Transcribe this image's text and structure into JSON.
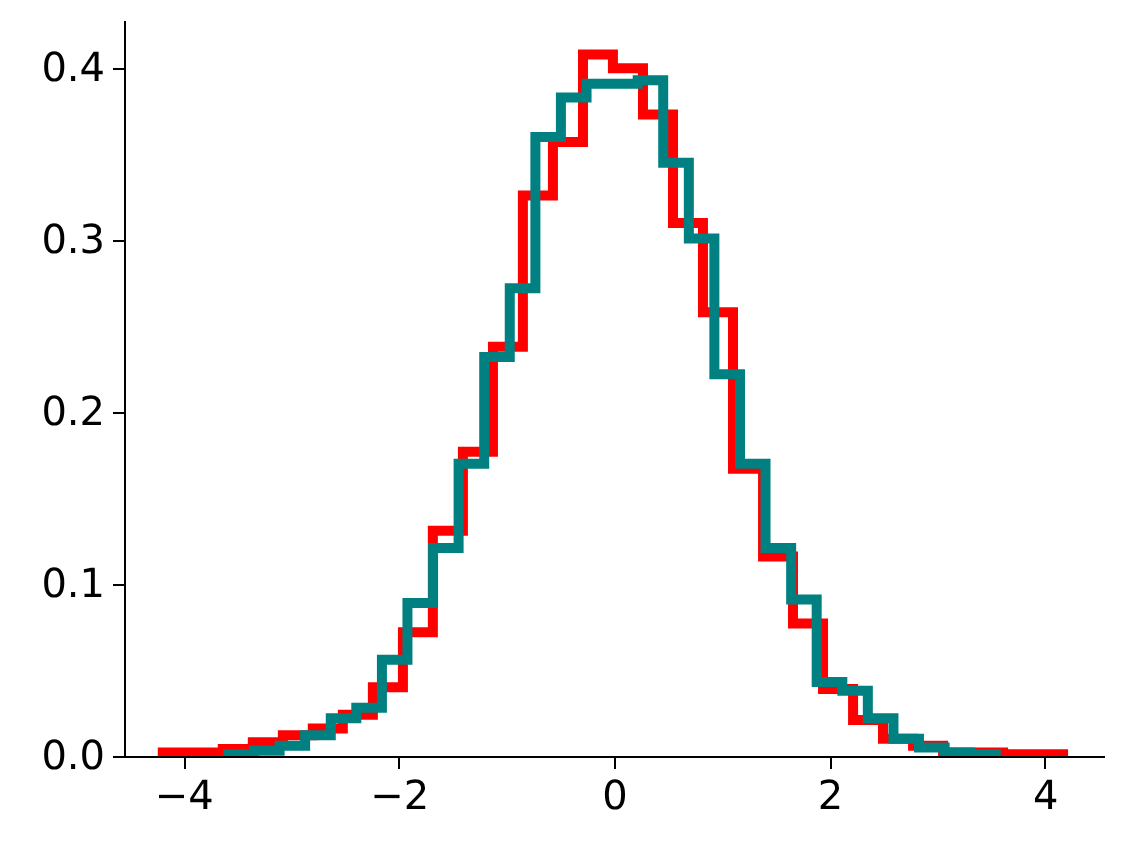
{
  "chart_data": {
    "type": "step",
    "series": [
      {
        "color": "#ff0000",
        "x": [
          -4.19,
          -4.19,
          -3.911,
          -3.633,
          -3.354,
          -3.075,
          -2.797,
          -2.518,
          -2.239,
          -1.96,
          -1.682,
          -1.403,
          -1.124,
          -0.846,
          -0.567,
          -0.288,
          -0.01,
          0.269,
          0.548,
          0.826,
          1.105,
          1.384,
          1.662,
          1.941,
          2.22,
          2.498,
          2.777,
          3.056,
          3.334,
          3.613,
          3.892,
          4.17
        ],
        "values": [
          0,
          0.002,
          0.002,
          0.004,
          0.008,
          0.012,
          0.016,
          0.024,
          0.04,
          0.072,
          0.131,
          0.177,
          0.238,
          0.326,
          0.357,
          0.408,
          0.4,
          0.373,
          0.31,
          0.258,
          0.167,
          0.116,
          0.077,
          0.039,
          0.021,
          0.01,
          0.006,
          0.002,
          0.002,
          0.001,
          0.001,
          0
        ]
      },
      {
        "color": "#008080",
        "x": [
          -3.58,
          -3.58,
          -3.343,
          -3.105,
          -2.868,
          -2.63,
          -2.393,
          -2.155,
          -1.918,
          -1.68,
          -1.443,
          -1.205,
          -0.968,
          -0.73,
          -0.493,
          -0.255,
          -0.018,
          0.22,
          0.457,
          0.695,
          0.932,
          1.17,
          1.407,
          1.645,
          1.882,
          2.12,
          2.357,
          2.595,
          2.832,
          3.07,
          3.307,
          3.545
        ],
        "values": [
          0,
          0.001,
          0.003,
          0.006,
          0.012,
          0.022,
          0.028,
          0.056,
          0.089,
          0.121,
          0.17,
          0.232,
          0.272,
          0.36,
          0.383,
          0.391,
          0.391,
          0.393,
          0.345,
          0.301,
          0.222,
          0.17,
          0.121,
          0.091,
          0.043,
          0.038,
          0.022,
          0.01,
          0.005,
          0.002,
          0.001,
          0
        ]
      }
    ],
    "xlim": [
      -4.55,
      4.55
    ],
    "xticks": [
      {
        "value": -4,
        "label": "−4"
      },
      {
        "value": -2,
        "label": "−2"
      },
      {
        "value": 0,
        "label": "0"
      },
      {
        "value": 2,
        "label": "2"
      },
      {
        "value": 4,
        "label": "4"
      }
    ],
    "ylim": [
      0,
      0.428
    ],
    "yticks": [
      {
        "value": 0,
        "label": "0.0"
      },
      {
        "value": 0.1,
        "label": "0.1"
      },
      {
        "value": 0.2,
        "label": "0.2"
      },
      {
        "value": 0.3,
        "label": "0.3"
      },
      {
        "value": 0.4,
        "label": "0.4"
      }
    ],
    "marker": "none",
    "line_style": "solid"
  }
}
